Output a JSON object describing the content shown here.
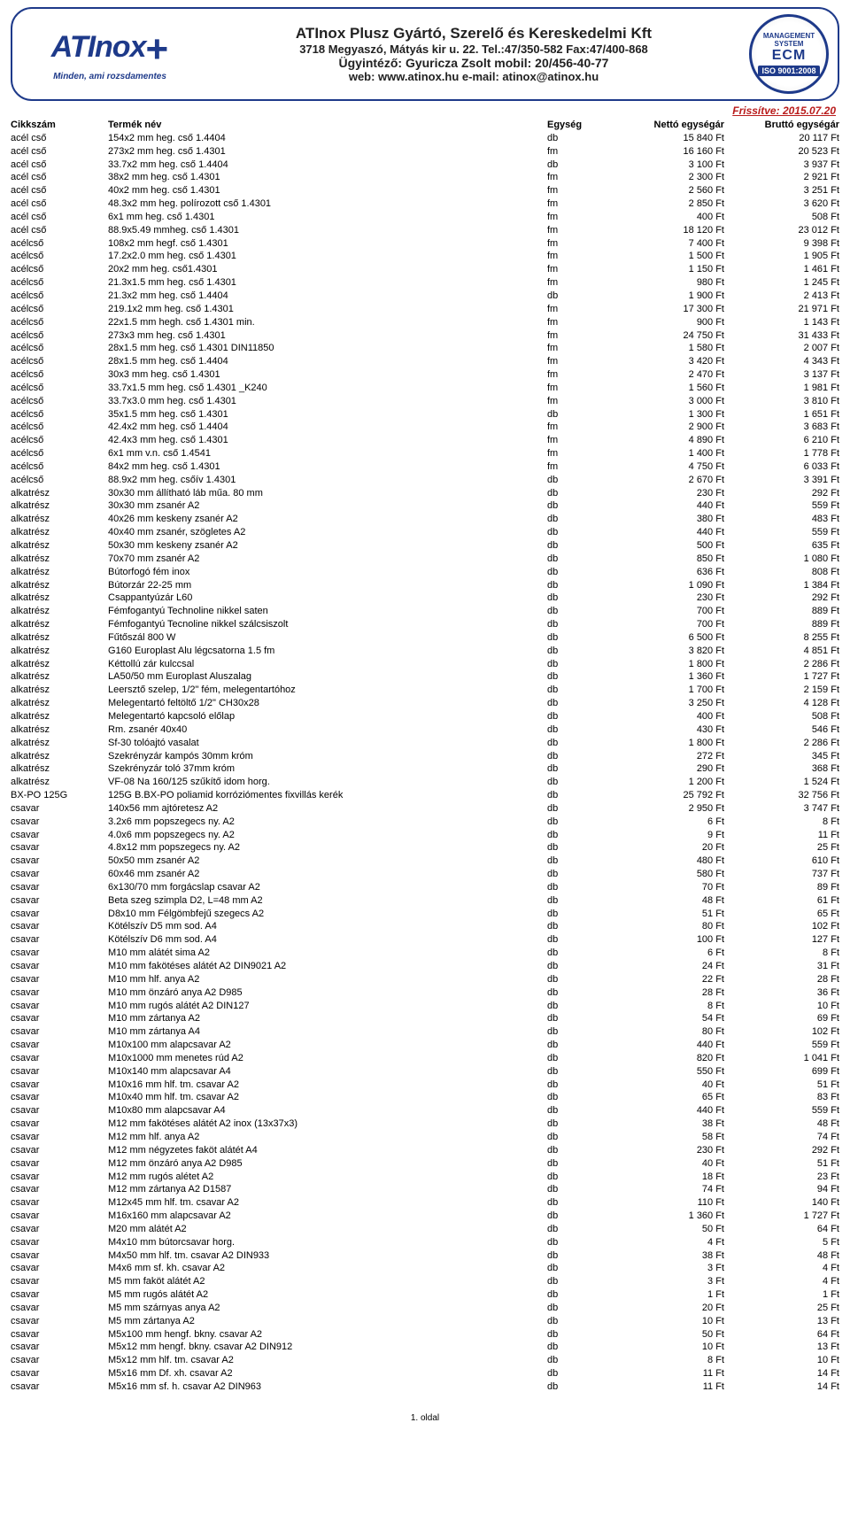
{
  "header": {
    "logo_text": "ATInox",
    "logo_plus": "+",
    "logo_tagline": "Minden, ami rozsdamentes",
    "company_line1": "ATInox Plusz Gyártó, Szerelő és Kereskedelmi Kft",
    "company_line2": "3718 Megyaszó, Mátyás kir u. 22. Tel.:47/350-582 Fax:47/400-868",
    "company_line3": "Ügyintéző: Gyuricza Zsolt  mobil: 20/456-40-77",
    "company_line4": "web: www.atinox.hu   e-mail: atinox@atinox.hu",
    "cert_top": "MANAGEMENT SYSTEM",
    "cert_mid": "ECM",
    "cert_iso": "ISO 9001:2008"
  },
  "update_label": "Frissítve: 2015.07.20",
  "columns": [
    "Cikkszám",
    "Termék név",
    "Egység",
    "Nettó egységár",
    "Bruttó egységár"
  ],
  "rows": [
    [
      "acél cső",
      "154x2 mm heg. cső 1.4404",
      "db",
      "15 840 Ft",
      "20 117 Ft"
    ],
    [
      "acél cső",
      "273x2 mm heg. cső 1.4301",
      "fm",
      "16 160 Ft",
      "20 523 Ft"
    ],
    [
      "acél cső",
      "33.7x2 mm heg. cső 1.4404",
      "db",
      "3 100 Ft",
      "3 937 Ft"
    ],
    [
      "acél cső",
      "38x2 mm heg. cső 1.4301",
      "fm",
      "2 300 Ft",
      "2 921 Ft"
    ],
    [
      "acél cső",
      "40x2 mm heg. cső 1.4301",
      "fm",
      "2 560 Ft",
      "3 251 Ft"
    ],
    [
      "acél cső",
      "48.3x2 mm heg. polírozott cső 1.4301",
      "fm",
      "2 850 Ft",
      "3 620 Ft"
    ],
    [
      "acél cső",
      "6x1 mm heg. cső 1.4301",
      "fm",
      "400 Ft",
      "508 Ft"
    ],
    [
      "acél cső",
      "88.9x5.49 mmheg. cső 1.4301",
      "fm",
      "18 120 Ft",
      "23 012 Ft"
    ],
    [
      "acélcső",
      "108x2 mm hegf. cső 1.4301",
      "fm",
      "7 400 Ft",
      "9 398 Ft"
    ],
    [
      "acélcső",
      "17.2x2.0 mm heg. cső 1.4301",
      "fm",
      "1 500 Ft",
      "1 905 Ft"
    ],
    [
      "acélcső",
      "20x2 mm heg. cső1.4301",
      "fm",
      "1 150 Ft",
      "1 461 Ft"
    ],
    [
      "acélcső",
      "21.3x1.5 mm heg. cső 1.4301",
      "fm",
      "980 Ft",
      "1 245 Ft"
    ],
    [
      "acélcső",
      "21.3x2 mm heg. cső 1.4404",
      "db",
      "1 900 Ft",
      "2 413 Ft"
    ],
    [
      "acélcső",
      "219.1x2 mm heg. cső 1.4301",
      "fm",
      "17 300 Ft",
      "21 971 Ft"
    ],
    [
      "acélcső",
      "22x1.5 mm hegh. cső 1.4301 min.",
      "fm",
      "900 Ft",
      "1 143 Ft"
    ],
    [
      "acélcső",
      "273x3 mm heg. cső 1.4301",
      "fm",
      "24 750 Ft",
      "31 433 Ft"
    ],
    [
      "acélcső",
      "28x1.5 mm heg. cső 1.4301 DIN11850",
      "fm",
      "1 580 Ft",
      "2 007 Ft"
    ],
    [
      "acélcső",
      "28x1.5 mm heg. cső 1.4404",
      "fm",
      "3 420 Ft",
      "4 343 Ft"
    ],
    [
      "acélcső",
      "30x3 mm heg. cső 1.4301",
      "fm",
      "2 470 Ft",
      "3 137 Ft"
    ],
    [
      "acélcső",
      "33.7x1.5 mm heg. cső 1.4301 _K240",
      "fm",
      "1 560 Ft",
      "1 981 Ft"
    ],
    [
      "acélcső",
      "33.7x3.0 mm heg. cső 1.4301",
      "fm",
      "3 000 Ft",
      "3 810 Ft"
    ],
    [
      "acélcső",
      "35x1.5 mm heg. cső 1.4301",
      "db",
      "1 300 Ft",
      "1 651 Ft"
    ],
    [
      "acélcső",
      "42.4x2 mm heg. cső 1.4404",
      "fm",
      "2 900 Ft",
      "3 683 Ft"
    ],
    [
      "acélcső",
      "42.4x3 mm heg. cső 1.4301",
      "fm",
      "4 890 Ft",
      "6 210 Ft"
    ],
    [
      "acélcső",
      "6x1 mm v.n. cső 1.4541",
      "fm",
      "1 400 Ft",
      "1 778 Ft"
    ],
    [
      "acélcső",
      "84x2 mm heg. cső 1.4301",
      "fm",
      "4 750 Ft",
      "6 033 Ft"
    ],
    [
      "acélcső",
      "88.9x2 mm heg. csőív 1.4301",
      "db",
      "2 670 Ft",
      "3 391 Ft"
    ],
    [
      "alkatrész",
      "30x30 mm állítható láb műa. 80 mm",
      "db",
      "230 Ft",
      "292 Ft"
    ],
    [
      "alkatrész",
      "30x30 mm zsanér A2",
      "db",
      "440 Ft",
      "559 Ft"
    ],
    [
      "alkatrész",
      "40x26 mm keskeny zsanér A2",
      "db",
      "380 Ft",
      "483 Ft"
    ],
    [
      "alkatrész",
      "40x40 mm zsanér, szögletes A2",
      "db",
      "440 Ft",
      "559 Ft"
    ],
    [
      "alkatrész",
      "50x30 mm keskeny zsanér A2",
      "db",
      "500 Ft",
      "635 Ft"
    ],
    [
      "alkatrész",
      "70x70 mm zsanér A2",
      "db",
      "850 Ft",
      "1 080 Ft"
    ],
    [
      "alkatrész",
      "Bútorfogó fém inox",
      "db",
      "636 Ft",
      "808 Ft"
    ],
    [
      "alkatrész",
      "Bútorzár 22-25 mm",
      "db",
      "1 090 Ft",
      "1 384 Ft"
    ],
    [
      "alkatrész",
      "Csappantyúzár L60",
      "db",
      "230 Ft",
      "292 Ft"
    ],
    [
      "alkatrész",
      "Fémfogantyú Technoline nikkel saten",
      "db",
      "700 Ft",
      "889 Ft"
    ],
    [
      "alkatrész",
      "Fémfogantyú Tecnoline nikkel szálcsiszolt",
      "db",
      "700 Ft",
      "889 Ft"
    ],
    [
      "alkatrész",
      "Fűtőszál 800 W",
      "db",
      "6 500 Ft",
      "8 255 Ft"
    ],
    [
      "alkatrész",
      "G160 Europlast Alu légcsatorna 1.5 fm",
      "db",
      "3 820 Ft",
      "4 851 Ft"
    ],
    [
      "alkatrész",
      "Kéttollú zár kulccsal",
      "db",
      "1 800 Ft",
      "2 286 Ft"
    ],
    [
      "alkatrész",
      "LA50/50 mm Europlast Aluszalag",
      "db",
      "1 360 Ft",
      "1 727 Ft"
    ],
    [
      "alkatrész",
      "Leersztő szelep, 1/2\" fém, melegentartóhoz",
      "db",
      "1 700 Ft",
      "2 159 Ft"
    ],
    [
      "alkatrész",
      "Melegentartó feltöltő 1/2\" CH30x28",
      "db",
      "3 250 Ft",
      "4 128 Ft"
    ],
    [
      "alkatrész",
      "Melegentartó kapcsoló előlap",
      "db",
      "400 Ft",
      "508 Ft"
    ],
    [
      "alkatrész",
      "Rm. zsanér 40x40",
      "db",
      "430 Ft",
      "546 Ft"
    ],
    [
      "alkatrész",
      "Sf-30 tolóajtó vasalat",
      "db",
      "1 800 Ft",
      "2 286 Ft"
    ],
    [
      "alkatrész",
      "Szekrényzár kampós 30mm króm",
      "db",
      "272 Ft",
      "345 Ft"
    ],
    [
      "alkatrész",
      "Szekrényzár toló 37mm króm",
      "db",
      "290 Ft",
      "368 Ft"
    ],
    [
      "alkatrész",
      "VF-08 Na 160/125 szűkítő idom horg.",
      "db",
      "1 200 Ft",
      "1 524 Ft"
    ],
    [
      "BX-PO 125G",
      "125G B.BX-PO poliamid korróziómentes fixvillás kerék",
      "db",
      "25 792 Ft",
      "32 756 Ft"
    ],
    [
      "csavar",
      "140x56 mm ajtóretesz A2",
      "db",
      "2 950 Ft",
      "3 747 Ft"
    ],
    [
      "csavar",
      "3.2x6 mm popszegecs ny. A2",
      "db",
      "6 Ft",
      "8 Ft"
    ],
    [
      "csavar",
      "4.0x6 mm popszegecs ny. A2",
      "db",
      "9 Ft",
      "11 Ft"
    ],
    [
      "csavar",
      "4.8x12 mm popszegecs ny. A2",
      "db",
      "20 Ft",
      "25 Ft"
    ],
    [
      "csavar",
      "50x50 mm zsanér A2",
      "db",
      "480 Ft",
      "610 Ft"
    ],
    [
      "csavar",
      "60x46 mm zsanér A2",
      "db",
      "580 Ft",
      "737 Ft"
    ],
    [
      "csavar",
      "6x130/70 mm forgácslap csavar A2",
      "db",
      "70 Ft",
      "89 Ft"
    ],
    [
      "csavar",
      "Beta szeg szimpla D2, L=48 mm A2",
      "db",
      "48 Ft",
      "61 Ft"
    ],
    [
      "csavar",
      "D8x10 mm Félgömbfejű szegecs A2",
      "db",
      "51 Ft",
      "65 Ft"
    ],
    [
      "csavar",
      "Kötélszív D5 mm sod. A4",
      "db",
      "80 Ft",
      "102 Ft"
    ],
    [
      "csavar",
      "Kötélszív D6 mm sod.  A4",
      "db",
      "100 Ft",
      "127 Ft"
    ],
    [
      "csavar",
      "M10 mm alátét sima A2",
      "db",
      "6 Ft",
      "8 Ft"
    ],
    [
      "csavar",
      "M10 mm fakötéses alátét A2 DIN9021 A2",
      "db",
      "24 Ft",
      "31 Ft"
    ],
    [
      "csavar",
      "M10 mm hlf. anya A2",
      "db",
      "22 Ft",
      "28 Ft"
    ],
    [
      "csavar",
      "M10 mm önzáró anya A2 D985",
      "db",
      "28 Ft",
      "36 Ft"
    ],
    [
      "csavar",
      "M10 mm rugós alátét A2 DIN127",
      "db",
      "8 Ft",
      "10 Ft"
    ],
    [
      "csavar",
      "M10 mm zártanya A2",
      "db",
      "54 Ft",
      "69 Ft"
    ],
    [
      "csavar",
      "M10 mm zártanya A4",
      "db",
      "80 Ft",
      "102 Ft"
    ],
    [
      "csavar",
      "M10x100 mm alapcsavar A2",
      "db",
      "440 Ft",
      "559 Ft"
    ],
    [
      "csavar",
      "M10x1000 mm menetes rúd A2",
      "db",
      "820 Ft",
      "1 041 Ft"
    ],
    [
      "csavar",
      "M10x140 mm alapcsavar A4",
      "db",
      "550 Ft",
      "699 Ft"
    ],
    [
      "csavar",
      "M10x16 mm hlf. tm. csavar A2",
      "db",
      "40 Ft",
      "51 Ft"
    ],
    [
      "csavar",
      "M10x40 mm hlf. tm. csavar A2",
      "db",
      "65 Ft",
      "83 Ft"
    ],
    [
      "csavar",
      "M10x80 mm alapcsavar A4",
      "db",
      "440 Ft",
      "559 Ft"
    ],
    [
      "csavar",
      "M12 mm fakötéses alátét A2 inox (13x37x3)",
      "db",
      "38 Ft",
      "48 Ft"
    ],
    [
      "csavar",
      "M12 mm hlf. anya A2",
      "db",
      "58 Ft",
      "74 Ft"
    ],
    [
      "csavar",
      "M12 mm négyzetes faköt alátét A4",
      "db",
      "230 Ft",
      "292 Ft"
    ],
    [
      "csavar",
      "M12 mm önzáró anya A2 D985",
      "db",
      "40 Ft",
      "51 Ft"
    ],
    [
      "csavar",
      "M12 mm rugós alétet A2",
      "db",
      "18 Ft",
      "23 Ft"
    ],
    [
      "csavar",
      "M12 mm zártanya A2 D1587",
      "db",
      "74 Ft",
      "94 Ft"
    ],
    [
      "csavar",
      "M12x45 mm hlf. tm. csavar A2",
      "db",
      "110 Ft",
      "140 Ft"
    ],
    [
      "csavar",
      "M16x160 mm alapcsavar A2",
      "db",
      "1 360 Ft",
      "1 727 Ft"
    ],
    [
      "csavar",
      "M20 mm alátét A2",
      "db",
      "50 Ft",
      "64 Ft"
    ],
    [
      "csavar",
      "M4x10 mm bútorcsavar horg.",
      "db",
      "4 Ft",
      "5 Ft"
    ],
    [
      "csavar",
      "M4x50 mm hlf. tm. csavar A2 DIN933",
      "db",
      "38 Ft",
      "48 Ft"
    ],
    [
      "csavar",
      "M4x6 mm sf. kh. csavar A2",
      "db",
      "3 Ft",
      "4 Ft"
    ],
    [
      "csavar",
      "M5 mm faköt alátét A2",
      "db",
      "3 Ft",
      "4 Ft"
    ],
    [
      "csavar",
      "M5 mm rugós alátét A2",
      "db",
      "1 Ft",
      "1 Ft"
    ],
    [
      "csavar",
      "M5 mm szárnyas anya A2",
      "db",
      "20 Ft",
      "25 Ft"
    ],
    [
      "csavar",
      "M5 mm zártanya A2",
      "db",
      "10 Ft",
      "13 Ft"
    ],
    [
      "csavar",
      "M5x100 mm hengf. bkny. csavar A2",
      "db",
      "50 Ft",
      "64 Ft"
    ],
    [
      "csavar",
      "M5x12 mm hengf. bkny. csavar A2 DIN912",
      "db",
      "10 Ft",
      "13 Ft"
    ],
    [
      "csavar",
      "M5x12 mm hlf. tm. csavar A2",
      "db",
      "8 Ft",
      "10 Ft"
    ],
    [
      "csavar",
      "M5x16 mm Df. xh. csavar A2",
      "db",
      "11 Ft",
      "14 Ft"
    ],
    [
      "csavar",
      "M5x16 mm sf. h. csavar A2 DIN963",
      "db",
      "11 Ft",
      "14 Ft"
    ]
  ],
  "footer": "1. oldal"
}
